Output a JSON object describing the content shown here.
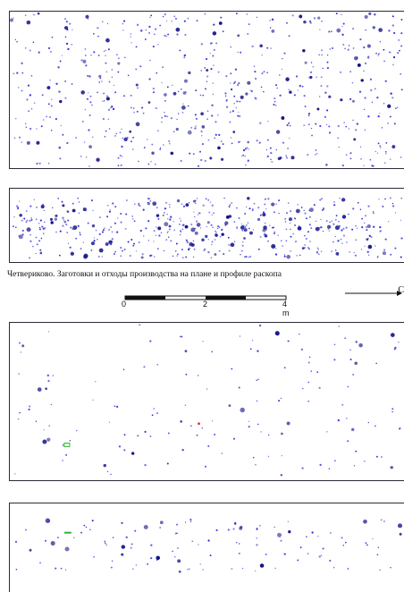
{
  "caption": "Четвериково. Заготовки и отходы производства на плане и профиле раскопа",
  "scale": {
    "ticks": [
      "0",
      "2",
      "4 m"
    ]
  },
  "direction_label": "С",
  "colors": {
    "point": "#2b2bd6",
    "point_dark": "#14148a",
    "red_point": "#d03030",
    "green_marker": "#2db52d",
    "frame": "#2a2a3a"
  }
}
